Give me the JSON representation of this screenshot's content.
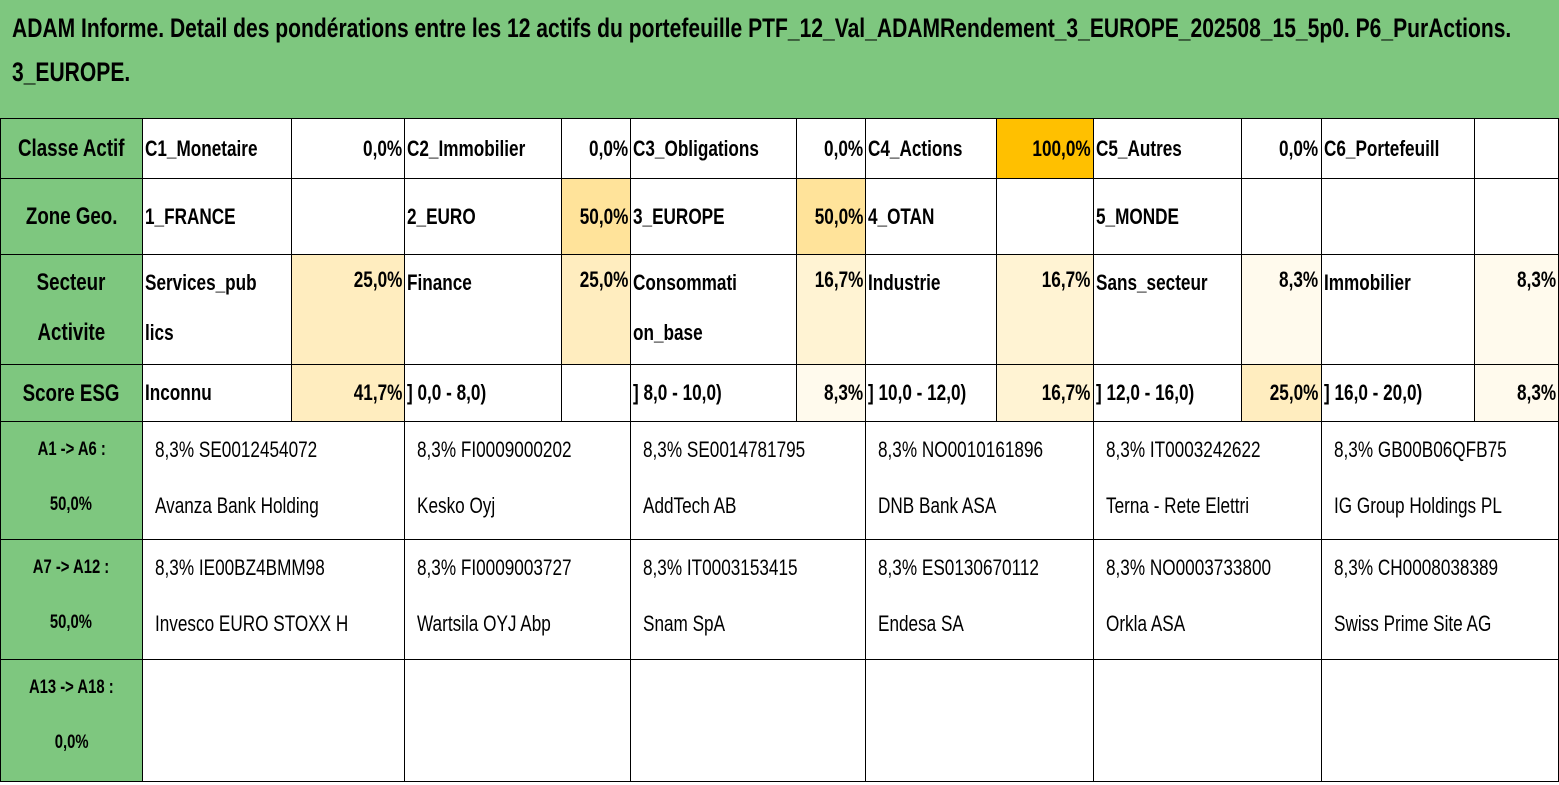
{
  "title": {
    "line1": "ADAM Informe. Detail des pondérations entre les 12 actifs du portefeuille PTF_12_Val_ADAMRendement_3_EUROPE_202508_15_5p0. P6_PurActions.",
    "line2": "3_EUROPE."
  },
  "classe": {
    "header": "Classe Actif",
    "items": [
      {
        "label": "C1_Monetaire",
        "value": "0,0%"
      },
      {
        "label": "C2_Immobilier",
        "value": "0,0%"
      },
      {
        "label": "C3_Obligations",
        "value": "0,0%"
      },
      {
        "label": "C4_Actions",
        "value": "100,0%"
      },
      {
        "label": "C5_Autres",
        "value": "0,0%"
      },
      {
        "label": "C6_Portefeuill",
        "value": ""
      }
    ]
  },
  "zone": {
    "header": "Zone Geo.",
    "items": [
      {
        "label": "1_FRANCE",
        "value": ""
      },
      {
        "label": "2_EURO",
        "value": "50,0%"
      },
      {
        "label": "3_EUROPE",
        "value": "50,0%"
      },
      {
        "label": "4_OTAN",
        "value": ""
      },
      {
        "label": "5_MONDE",
        "value": ""
      },
      {
        "label": "",
        "value": ""
      }
    ]
  },
  "secteur": {
    "header_line1": "Secteur",
    "header_line2": "Activite",
    "items": [
      {
        "label_line1": "Services_pub",
        "label_line2": "lics",
        "value": "25,0%"
      },
      {
        "label_line1": "Finance",
        "label_line2": "",
        "value": "25,0%"
      },
      {
        "label_line1": "Consommati",
        "label_line2": "on_base",
        "value": "16,7%"
      },
      {
        "label_line1": "Industrie",
        "label_line2": "",
        "value": "16,7%"
      },
      {
        "label_line1": "Sans_secteur",
        "label_line2": "",
        "value": "8,3%"
      },
      {
        "label_line1": "Immobilier",
        "label_line2": "",
        "value": "8,3%"
      }
    ]
  },
  "esg": {
    "header": "Score ESG",
    "items": [
      {
        "label": "Inconnu",
        "value": "41,7%"
      },
      {
        "label": "] 0,0 - 8,0)",
        "value": ""
      },
      {
        "label": "] 8,0 - 10,0)",
        "value": "8,3%"
      },
      {
        "label": "] 10,0 - 12,0)",
        "value": "16,7%"
      },
      {
        "label": "] 12,0 - 16,0)",
        "value": "25,0%"
      },
      {
        "label": "] 16,0 - 20,0)",
        "value": "8,3%"
      }
    ]
  },
  "asset_groups": [
    {
      "header_line1": "A1 -> A6 :",
      "header_line2": "50,0%",
      "assets": [
        {
          "line1": "8,3% SE0012454072",
          "line2": "Avanza Bank Holding"
        },
        {
          "line1": "8,3% FI0009000202",
          "line2": "Kesko Oyj"
        },
        {
          "line1": "8,3% SE0014781795",
          "line2": "AddTech AB"
        },
        {
          "line1": "8,3% NO0010161896",
          "line2": "DNB Bank ASA"
        },
        {
          "line1": "8,3% IT0003242622",
          "line2": "Terna - Rete Elettri"
        },
        {
          "line1": "8,3% GB00B06QFB75",
          "line2": "IG Group Holdings PL"
        }
      ]
    },
    {
      "header_line1": "A7 -> A12 :",
      "header_line2": "50,0%",
      "assets": [
        {
          "line1": "8,3% IE00BZ4BMM98",
          "line2": "Invesco EURO STOXX H"
        },
        {
          "line1": "8,3% FI0009003727",
          "line2": "Wartsila OYJ Abp"
        },
        {
          "line1": "8,3% IT0003153415",
          "line2": "Snam SpA"
        },
        {
          "line1": "8,3% ES0130670112",
          "line2": "Endesa SA"
        },
        {
          "line1": "8,3% NO0003733800",
          "line2": "Orkla ASA"
        },
        {
          "line1": "8,3% CH0008038389",
          "line2": "Swiss Prime Site AG"
        }
      ]
    },
    {
      "header_line1": "A13 -> A18 :",
      "header_line2": "0,0%",
      "assets": [
        {
          "line1": "",
          "line2": ""
        },
        {
          "line1": "",
          "line2": ""
        },
        {
          "line1": "",
          "line2": ""
        },
        {
          "line1": "",
          "line2": ""
        },
        {
          "line1": "",
          "line2": ""
        },
        {
          "line1": "",
          "line2": ""
        }
      ]
    }
  ],
  "colors": {
    "header_green": "#7ec77f",
    "highlight_orange": "#ffc000",
    "tint_50": "#ffe39a",
    "tint_25_41": "#ffedbf",
    "tint_16": "#fff3d3",
    "tint_8": "#fffaed"
  }
}
